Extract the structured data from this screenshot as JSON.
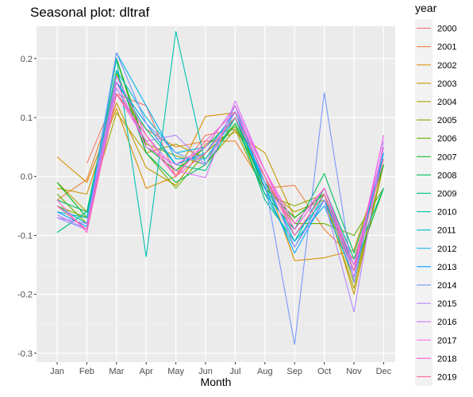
{
  "chart_data": {
    "type": "line",
    "title": "Seasonal plot: dltraf",
    "xlabel": "Month",
    "ylabel": "",
    "categories": [
      "Jan",
      "Feb",
      "Mar",
      "Apr",
      "May",
      "Jun",
      "Jul",
      "Aug",
      "Sep",
      "Oct",
      "Nov",
      "Dec"
    ],
    "ylim": [
      -0.315,
      0.255
    ],
    "yticks": [
      -0.3,
      -0.2,
      -0.1,
      0.0,
      0.1,
      0.2
    ],
    "ytick_labels": [
      "-0.3",
      "-0.2",
      "-0.1",
      "0.0",
      "0.1",
      "0.2"
    ],
    "grid": true,
    "legend": {
      "title": "year",
      "position": "right"
    },
    "series": [
      {
        "name": "2000",
        "color": "#F8766D",
        "values": [
          null,
          0.022,
          0.14,
          0.12,
          0.0,
          0.07,
          0.08,
          0.0,
          -0.09,
          -0.02,
          -0.15,
          0.03
        ]
      },
      {
        "name": "2001",
        "color": "#EC8239",
        "values": [
          -0.04,
          -0.005,
          0.14,
          0.08,
          0.05,
          0.06,
          0.06,
          -0.02,
          -0.015,
          -0.09,
          -0.14,
          0.02
        ]
      },
      {
        "name": "2002",
        "color": "#DB8E00",
        "values": [
          0.033,
          -0.01,
          0.115,
          -0.02,
          0.0,
          0.102,
          0.108,
          0.0,
          -0.143,
          -0.138,
          -0.125,
          0.03
        ]
      },
      {
        "name": "2003",
        "color": "#C79800",
        "values": [
          -0.02,
          -0.03,
          0.125,
          0.015,
          -0.015,
          0.055,
          0.075,
          0.04,
          -0.07,
          -0.03,
          -0.2,
          0.02
        ]
      },
      {
        "name": "2004",
        "color": "#AEA200",
        "values": [
          -0.01,
          -0.06,
          0.108,
          0.04,
          0.055,
          0.03,
          0.09,
          -0.02,
          -0.06,
          -0.04,
          -0.19,
          0.02
        ]
      },
      {
        "name": "2005",
        "color": "#8FAA00",
        "values": [
          -0.05,
          -0.07,
          0.175,
          0.055,
          0.035,
          0.02,
          0.08,
          -0.03,
          -0.05,
          -0.03,
          -0.18,
          0.02
        ]
      },
      {
        "name": "2006",
        "color": "#64B200",
        "values": [
          -0.03,
          -0.08,
          0.2,
          0.04,
          -0.02,
          0.04,
          0.085,
          -0.01,
          -0.08,
          -0.08,
          -0.1,
          -0.02
        ]
      },
      {
        "name": "2007",
        "color": "#00B81B",
        "values": [
          -0.01,
          -0.07,
          0.2,
          0.05,
          0.01,
          0.05,
          0.1,
          -0.02,
          -0.07,
          -0.03,
          -0.16,
          -0.02
        ]
      },
      {
        "name": "2008",
        "color": "#00BD5C",
        "values": [
          -0.04,
          -0.06,
          0.18,
          0.04,
          -0.01,
          0.02,
          0.09,
          -0.03,
          -0.09,
          0.005,
          -0.13,
          0.02
        ]
      },
      {
        "name": "2009",
        "color": "#00C08E",
        "values": [
          -0.095,
          -0.06,
          0.16,
          0.08,
          0.02,
          0.01,
          0.1,
          -0.04,
          -0.11,
          -0.02,
          -0.14,
          -0.02
        ]
      },
      {
        "name": "2010",
        "color": "#00C1B2",
        "values": [
          -0.05,
          -0.08,
          0.2,
          -0.136,
          0.246,
          0.02,
          0.11,
          -0.03,
          -0.12,
          -0.03,
          -0.15,
          0.03
        ]
      },
      {
        "name": "2011",
        "color": "#00BCD1",
        "values": [
          -0.06,
          -0.07,
          0.18,
          0.1,
          0.04,
          0.05,
          0.12,
          -0.02,
          -0.1,
          -0.04,
          -0.16,
          0.03
        ]
      },
      {
        "name": "2012",
        "color": "#00B3EC",
        "values": [
          -0.07,
          -0.08,
          0.21,
          0.12,
          0.03,
          0.03,
          0.1,
          -0.01,
          -0.11,
          -0.05,
          -0.17,
          0.04
        ]
      },
      {
        "name": "2013",
        "color": "#00A5FF",
        "values": [
          -0.06,
          -0.085,
          0.16,
          0.09,
          0.02,
          0.04,
          0.11,
          -0.02,
          -0.13,
          -0.04,
          -0.15,
          0.04
        ]
      },
      {
        "name": "2014",
        "color": "#7997FF",
        "values": [
          -0.07,
          -0.09,
          0.21,
          0.09,
          0.04,
          0.02,
          0.12,
          -0.01,
          -0.285,
          0.142,
          -0.18,
          0.05
        ]
      },
      {
        "name": "2015",
        "color": "#B385FF",
        "values": [
          -0.065,
          -0.09,
          0.15,
          0.06,
          0.07,
          0.02,
          0.11,
          0.0,
          -0.12,
          -0.04,
          -0.23,
          0.06
        ]
      },
      {
        "name": "2016",
        "color": "#DB72FB",
        "values": [
          -0.07,
          -0.08,
          0.17,
          0.07,
          0.01,
          -0.002,
          0.128,
          0.01,
          -0.1,
          -0.03,
          -0.17,
          0.07
        ]
      },
      {
        "name": "2017",
        "color": "#F066EA",
        "values": [
          -0.05,
          -0.09,
          0.16,
          0.05,
          0.02,
          0.05,
          0.12,
          0.01,
          -0.09,
          -0.02,
          -0.16,
          0.07
        ]
      },
      {
        "name": "2018",
        "color": "#FB61D7",
        "values": [
          -0.04,
          -0.095,
          0.14,
          0.06,
          0.0,
          0.06,
          0.11,
          0.01,
          -0.08,
          -0.02,
          -0.15,
          0.05
        ]
      },
      {
        "name": "2019",
        "color": "#FF68A1",
        "values": [
          -0.05,
          -0.09,
          0.14,
          0.07,
          0.0,
          0.04,
          0.1,
          0.0,
          -0.1,
          -0.03,
          -0.16,
          0.03
        ]
      }
    ]
  }
}
